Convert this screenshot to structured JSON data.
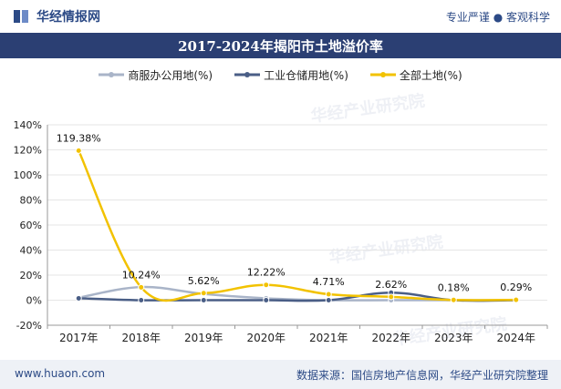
{
  "header": {
    "brand": "华经情报网",
    "slogan": "专业严谨 ● 客观科学"
  },
  "watermarks": [
    "华经产业研究院",
    "华经产业研究院",
    "华经产业研究院"
  ],
  "footer": {
    "website": "www.huaon.com",
    "source": "数据来源：国信房地产信息网，华经产业研究院整理"
  },
  "colors": {
    "brand": "#2c4a86",
    "title_bg": "#2b3f73",
    "commercial": "#a9b4c8",
    "industrial": "#4a5e86",
    "all_land": "#f2c200"
  },
  "chart_data": {
    "type": "line",
    "title": "2017-2024年揭阳市土地溢价率",
    "categories": [
      "2017年",
      "2018年",
      "2019年",
      "2020年",
      "2021年",
      "2022年",
      "2023年",
      "2024年"
    ],
    "y_ticks": [
      "140%",
      "120%",
      "100%",
      "80%",
      "60%",
      "40%",
      "20%",
      "0%",
      "-20%"
    ],
    "ylim": [
      -20,
      140
    ],
    "legend_position": "top",
    "series": [
      {
        "name": "商服办公用地(%)",
        "color": "#a9b4c8",
        "values": [
          2,
          10.5,
          5,
          1.5,
          0,
          0,
          0,
          0
        ]
      },
      {
        "name": "工业仓储用地(%)",
        "color": "#4a5e86",
        "values": [
          1.5,
          0,
          0,
          0,
          0,
          6,
          0,
          0
        ]
      },
      {
        "name": "全部土地(%)",
        "color": "#f2c200",
        "values": [
          119.38,
          10.24,
          5.62,
          12.22,
          4.71,
          2.62,
          0.18,
          0.29
        ],
        "labels": [
          "119.38%",
          "10.24%",
          "5.62%",
          "12.22%",
          "4.71%",
          "2.62%",
          "0.18%",
          "0.29%"
        ]
      }
    ]
  }
}
